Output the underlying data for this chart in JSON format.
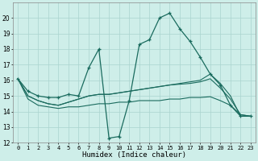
{
  "xlabel": "Humidex (Indice chaleur)",
  "bg_color": "#ceeee9",
  "grid_color": "#aad4ce",
  "line_color": "#1a6b5e",
  "ylim": [
    12,
    21
  ],
  "xlim": [
    -0.5,
    23.5
  ],
  "yticks": [
    12,
    13,
    14,
    15,
    16,
    17,
    18,
    19,
    20
  ],
  "xticks": [
    0,
    1,
    2,
    3,
    4,
    5,
    6,
    7,
    8,
    9,
    10,
    11,
    12,
    13,
    14,
    15,
    16,
    17,
    18,
    19,
    20,
    21,
    22,
    23
  ],
  "series1": [
    16.1,
    15.3,
    15.0,
    14.9,
    14.9,
    15.1,
    15.0,
    16.8,
    18.0,
    12.3,
    12.4,
    14.7,
    18.3,
    18.6,
    20.0,
    20.3,
    19.3,
    18.5,
    17.5,
    16.4,
    15.7,
    14.4,
    13.7,
    13.7
  ],
  "series2": [
    16.1,
    15.0,
    14.7,
    14.5,
    14.4,
    14.6,
    14.8,
    15.0,
    15.1,
    15.1,
    15.2,
    15.3,
    15.4,
    15.5,
    15.6,
    15.7,
    15.8,
    15.9,
    16.0,
    16.4,
    15.8,
    15.0,
    13.7,
    13.7
  ],
  "series3": [
    16.1,
    15.0,
    14.7,
    14.5,
    14.4,
    14.6,
    14.8,
    15.0,
    15.1,
    15.1,
    15.2,
    15.3,
    15.4,
    15.5,
    15.6,
    15.7,
    15.75,
    15.8,
    15.9,
    16.1,
    15.5,
    14.8,
    13.8,
    13.7
  ],
  "series4": [
    16.1,
    14.8,
    14.4,
    14.3,
    14.2,
    14.3,
    14.3,
    14.4,
    14.5,
    14.5,
    14.6,
    14.6,
    14.7,
    14.7,
    14.7,
    14.8,
    14.8,
    14.9,
    14.9,
    14.95,
    14.7,
    14.4,
    13.8,
    13.7
  ]
}
